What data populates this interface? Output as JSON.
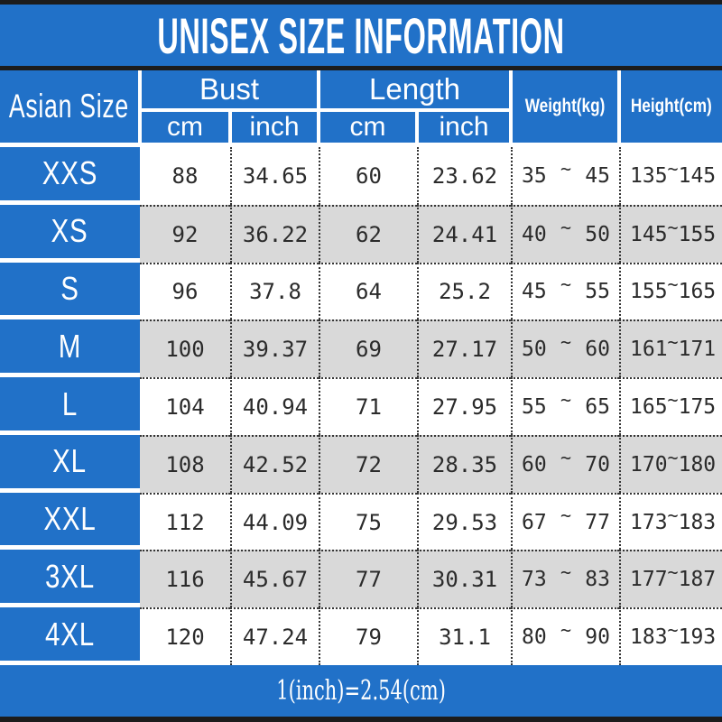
{
  "title": "UNISEX SIZE INFORMATION",
  "footer_note": "1(inch)=2.54(cm)",
  "tilde": "~",
  "colors": {
    "blue": "#2171c8",
    "black": "#1c1c1c",
    "gray_row": "#d9d9d9",
    "white_row": "#ffffff",
    "dotted_line": "#343434",
    "header_text": "#ffffff",
    "number_text": "#2b2b2b"
  },
  "header": {
    "size_col": "Asian Size",
    "bust": {
      "label": "Bust",
      "sub": [
        "cm",
        "inch"
      ]
    },
    "length": {
      "label": "Length",
      "sub": [
        "cm",
        "inch"
      ]
    },
    "weight_label": "Weight(kg)",
    "height_label": "Height(cm)"
  },
  "chart_data": {
    "type": "table",
    "title": "UNISEX SIZE INFORMATION",
    "columns": [
      "Asian Size",
      "Bust (cm)",
      "Bust (inch)",
      "Length (cm)",
      "Length (inch)",
      "Weight (kg)",
      "Height (cm)"
    ],
    "rows": [
      {
        "size": "XXS",
        "bust_cm": 88,
        "bust_inch": 34.65,
        "length_cm": 60,
        "length_inch": 23.62,
        "weight_kg": [
          35,
          45
        ],
        "height_cm": [
          135,
          145
        ]
      },
      {
        "size": "XS",
        "bust_cm": 92,
        "bust_inch": 36.22,
        "length_cm": 62,
        "length_inch": 24.41,
        "weight_kg": [
          40,
          50
        ],
        "height_cm": [
          145,
          155
        ]
      },
      {
        "size": "S",
        "bust_cm": 96,
        "bust_inch": 37.8,
        "length_cm": 64,
        "length_inch": 25.2,
        "weight_kg": [
          45,
          55
        ],
        "height_cm": [
          155,
          165
        ]
      },
      {
        "size": "M",
        "bust_cm": 100,
        "bust_inch": 39.37,
        "length_cm": 69,
        "length_inch": 27.17,
        "weight_kg": [
          50,
          60
        ],
        "height_cm": [
          161,
          171
        ]
      },
      {
        "size": "L",
        "bust_cm": 104,
        "bust_inch": 40.94,
        "length_cm": 71,
        "length_inch": 27.95,
        "weight_kg": [
          55,
          65
        ],
        "height_cm": [
          165,
          175
        ]
      },
      {
        "size": "XL",
        "bust_cm": 108,
        "bust_inch": 42.52,
        "length_cm": 72,
        "length_inch": 28.35,
        "weight_kg": [
          60,
          70
        ],
        "height_cm": [
          170,
          180
        ]
      },
      {
        "size": "XXL",
        "bust_cm": 112,
        "bust_inch": 44.09,
        "length_cm": 75,
        "length_inch": 29.53,
        "weight_kg": [
          67,
          77
        ],
        "height_cm": [
          173,
          183
        ]
      },
      {
        "size": "3XL",
        "bust_cm": 116,
        "bust_inch": 45.67,
        "length_cm": 77,
        "length_inch": 30.31,
        "weight_kg": [
          73,
          83
        ],
        "height_cm": [
          177,
          187
        ]
      },
      {
        "size": "4XL",
        "bust_cm": 120,
        "bust_inch": 47.24,
        "length_cm": 79,
        "length_inch": 31.1,
        "weight_kg": [
          80,
          90
        ],
        "height_cm": [
          183,
          193
        ]
      }
    ],
    "note": "1(inch)=2.54(cm)",
    "layout_hints": {
      "row_striping": "white/gray alternating",
      "first_column_style": "blue header column",
      "grid_lines": "black dotted"
    }
  }
}
